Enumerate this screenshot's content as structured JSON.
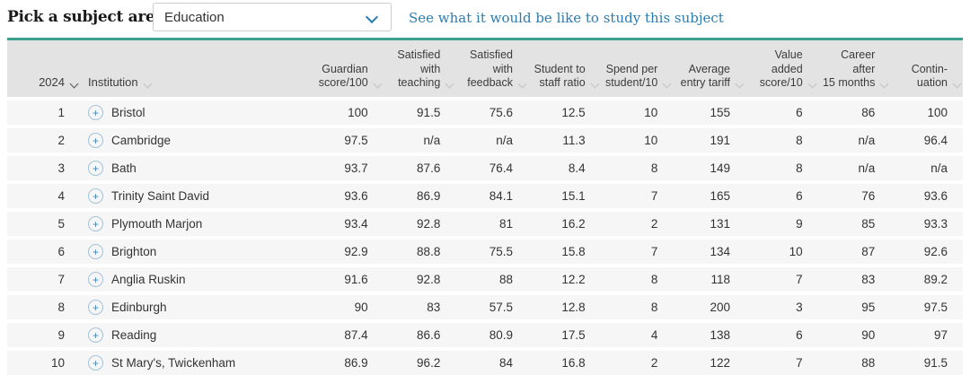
{
  "subject_picker": {
    "label": "Pick a subject area",
    "selected": "Education",
    "link": "See what it would be like to study this subject"
  },
  "table": {
    "year_header": "2024",
    "institution_header": "Institution",
    "metric_headers": [
      "Guardian\nscore/100",
      "Satisfied\nwith\nteaching",
      "Satisfied\nwith\nfeedback",
      "Student to\nstaff ratio",
      "Spend per\nstudent/10",
      "Average\nentry tariff",
      "Value added\nscore/10",
      "Career after\n15 months",
      "Contin-\nuation"
    ],
    "rows": [
      {
        "rank": "1",
        "institution": "Bristol",
        "values": [
          "100",
          "91.5",
          "75.6",
          "12.5",
          "10",
          "155",
          "6",
          "86",
          "100"
        ]
      },
      {
        "rank": "2",
        "institution": "Cambridge",
        "values": [
          "97.5",
          "n/a",
          "n/a",
          "11.3",
          "10",
          "191",
          "8",
          "n/a",
          "96.4"
        ]
      },
      {
        "rank": "3",
        "institution": "Bath",
        "values": [
          "93.7",
          "87.6",
          "76.4",
          "8.4",
          "8",
          "149",
          "8",
          "n/a",
          "n/a"
        ]
      },
      {
        "rank": "4",
        "institution": "Trinity Saint David",
        "values": [
          "93.6",
          "86.9",
          "84.1",
          "15.1",
          "7",
          "165",
          "6",
          "76",
          "93.6"
        ]
      },
      {
        "rank": "5",
        "institution": "Plymouth Marjon",
        "values": [
          "93.4",
          "92.8",
          "81",
          "16.2",
          "2",
          "131",
          "9",
          "85",
          "93.3"
        ]
      },
      {
        "rank": "6",
        "institution": "Brighton",
        "values": [
          "92.9",
          "88.8",
          "75.5",
          "15.8",
          "7",
          "134",
          "10",
          "87",
          "92.6"
        ]
      },
      {
        "rank": "7",
        "institution": "Anglia Ruskin",
        "values": [
          "91.6",
          "92.8",
          "88",
          "12.2",
          "8",
          "118",
          "7",
          "83",
          "89.2"
        ]
      },
      {
        "rank": "8",
        "institution": "Edinburgh",
        "values": [
          "90",
          "83",
          "57.5",
          "12.8",
          "8",
          "200",
          "3",
          "95",
          "97.5"
        ]
      },
      {
        "rank": "9",
        "institution": "Reading",
        "values": [
          "87.4",
          "86.6",
          "80.9",
          "17.5",
          "4",
          "138",
          "6",
          "90",
          "97"
        ]
      },
      {
        "rank": "10",
        "institution": "St Mary's, Twickenham",
        "values": [
          "86.9",
          "96.2",
          "84",
          "16.8",
          "2",
          "122",
          "7",
          "88",
          "91.5"
        ]
      }
    ]
  },
  "icons": {
    "plus": "+"
  },
  "colors": {
    "accent_teal": "#3d9f8d",
    "link_blue": "#2b7cb0",
    "header_bg": "#e3e3e3",
    "row_bg": "#f6f6f6",
    "text_dark": "#333333",
    "plus_blue": "#4188b4",
    "plus_ring": "#a3c2d8"
  }
}
